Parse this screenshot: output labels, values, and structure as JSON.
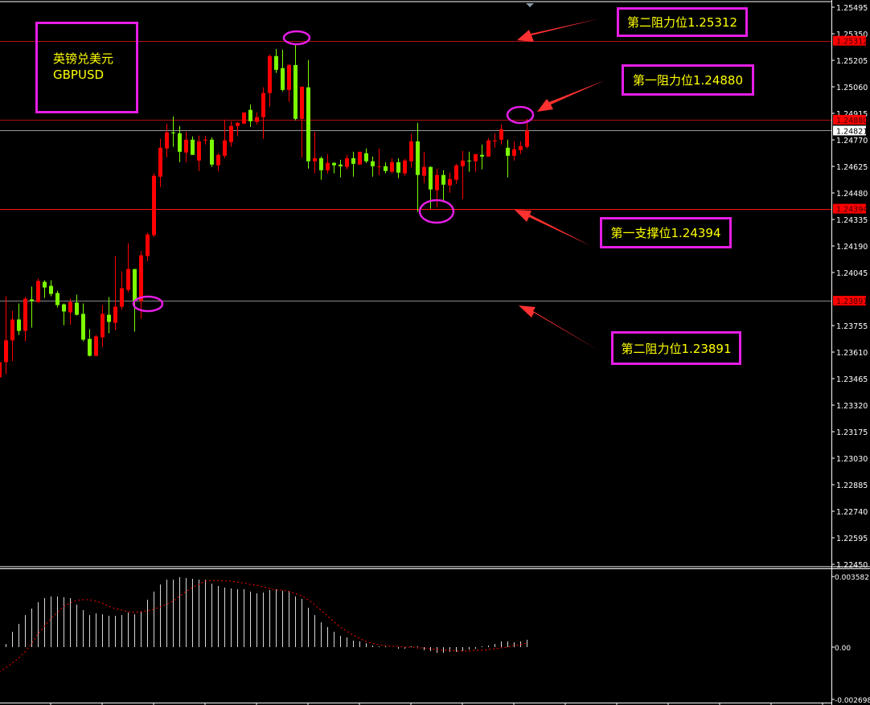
{
  "chart_data": {
    "type": "candlestick",
    "symbol_cn": "英镑兑美元",
    "symbol": "GBPUSD",
    "colors": {
      "up": "#ff0000",
      "down": "#7cfc00",
      "macd_hist": "#d8d8d8",
      "signal": "#ff0000",
      "annotation_box": "#e61ee6",
      "annotation_text": "#ffff00"
    },
    "price_axis": {
      "range": [
        1.2245,
        1.25495
      ],
      "ticks": [
        "1.25495",
        "1.25350",
        "1.25205",
        "1.25060",
        "1.24915",
        "1.24770",
        "1.24625",
        "1.24480",
        "1.24335",
        "1.24190",
        "1.24045",
        "1.23755",
        "1.23610",
        "1.23465",
        "1.23320",
        "1.23175",
        "1.23030",
        "1.22885",
        "1.22740",
        "1.22595",
        "1.22450"
      ]
    },
    "price_tags": [
      {
        "value": "1.25312",
        "style": "red"
      },
      {
        "value": "1.24880",
        "style": "red"
      },
      {
        "value": "1.24821",
        "style": "white"
      },
      {
        "value": "1.24394",
        "style": "red"
      },
      {
        "value": "1.23891",
        "style": "red"
      }
    ],
    "horizontal_lines": [
      {
        "price": 1.25312,
        "color": "#b01010"
      },
      {
        "price": 1.2488,
        "color": "#b01010"
      },
      {
        "price": 1.24821,
        "color": "#9a9a9a"
      },
      {
        "price": 1.24394,
        "color": "#ff1010"
      },
      {
        "price": 1.23891,
        "color": "#8a8a8a"
      }
    ],
    "ohlc": [
      [
        1.23472,
        1.23581,
        1.23011,
        1.23555
      ],
      [
        1.23555,
        1.23915,
        1.23489,
        1.23674
      ],
      [
        1.23674,
        1.23836,
        1.2356,
        1.23788
      ],
      [
        1.23788,
        1.23876,
        1.23704,
        1.23726
      ],
      [
        1.23726,
        1.23911,
        1.23669,
        1.23902
      ],
      [
        1.23898,
        1.23968,
        1.23744,
        1.23889
      ],
      [
        1.23884,
        1.24012,
        1.2388,
        1.23999
      ],
      [
        1.23994,
        1.24003,
        1.23906,
        1.23963
      ],
      [
        1.23972,
        1.24003,
        1.23915,
        1.23928
      ],
      [
        1.23933,
        1.23946,
        1.23854,
        1.23867
      ],
      [
        1.23871,
        1.23876,
        1.23757,
        1.23832
      ],
      [
        1.23827,
        1.23902,
        1.23761,
        1.23884
      ],
      [
        1.2388,
        1.23924,
        1.2381,
        1.23814
      ],
      [
        1.23819,
        1.23876,
        1.23669,
        1.23678
      ],
      [
        1.23682,
        1.23735,
        1.23586,
        1.2359
      ],
      [
        1.2359,
        1.23704,
        1.23586,
        1.23696
      ],
      [
        1.23691,
        1.23867,
        1.23639,
        1.23819
      ],
      [
        1.23814,
        1.23911,
        1.23713,
        1.23775
      ],
      [
        1.2377,
        1.24135,
        1.23731,
        1.23858
      ],
      [
        1.23858,
        1.24051,
        1.23841,
        1.23959
      ],
      [
        1.2395,
        1.24205,
        1.23937,
        1.24064
      ],
      [
        1.24064,
        1.24064,
        1.23722,
        1.23889
      ],
      [
        1.23889,
        1.24161,
        1.23792,
        1.24139
      ],
      [
        1.24135,
        1.24262,
        1.24108,
        1.24253
      ],
      [
        1.24249,
        1.24587,
        1.2424,
        1.24574
      ],
      [
        1.24569,
        1.24776,
        1.24512,
        1.24727
      ],
      [
        1.24723,
        1.24859,
        1.24675,
        1.24811
      ],
      [
        1.24811,
        1.24898,
        1.24732,
        1.24806
      ],
      [
        1.24806,
        1.24846,
        1.24648,
        1.24705
      ],
      [
        1.24701,
        1.24815,
        1.24648,
        1.24771
      ],
      [
        1.24771,
        1.24789,
        1.24688,
        1.24688
      ],
      [
        1.24657,
        1.24793,
        1.246,
        1.24762
      ],
      [
        1.24767,
        1.24793,
        1.24745,
        1.24771
      ],
      [
        1.24771,
        1.24784,
        1.24622,
        1.24635
      ],
      [
        1.24631,
        1.24697,
        1.246,
        1.24688
      ],
      [
        1.24683,
        1.24881,
        1.2467,
        1.24767
      ],
      [
        1.24758,
        1.24872,
        1.24732,
        1.24846
      ],
      [
        1.24846,
        1.24868,
        1.24793,
        1.24863
      ],
      [
        1.24859,
        1.2492,
        1.24855,
        1.2492
      ],
      [
        1.24934,
        1.24964,
        1.24841,
        1.24872
      ],
      [
        1.24868,
        1.2492,
        1.24855,
        1.24894
      ],
      [
        1.24894,
        1.25057,
        1.24776,
        1.25026
      ],
      [
        1.25026,
        1.25237,
        1.24951,
        1.25228
      ],
      [
        1.25228,
        1.25267,
        1.25136,
        1.25153
      ],
      [
        1.25162,
        1.25263,
        1.25035,
        1.25043
      ],
      [
        1.25043,
        1.25184,
        1.24978,
        1.25179
      ],
      [
        1.25179,
        1.25294,
        1.24877,
        1.24885
      ],
      [
        1.24885,
        1.25061,
        1.24675,
        1.25061
      ],
      [
        1.25057,
        1.25206,
        1.24613,
        1.24653
      ],
      [
        1.24653,
        1.24815,
        1.24587,
        1.2467
      ],
      [
        1.2467,
        1.24679,
        1.24552,
        1.24604
      ],
      [
        1.24604,
        1.24692,
        1.24587,
        1.24644
      ],
      [
        1.24644,
        1.24648,
        1.24587,
        1.24631
      ],
      [
        1.24635,
        1.24661,
        1.24565,
        1.24626
      ],
      [
        1.24622,
        1.24688,
        1.24609,
        1.2467
      ],
      [
        1.2467,
        1.24705,
        1.24569,
        1.24639
      ],
      [
        1.24635,
        1.24705,
        1.24635,
        1.24705
      ],
      [
        1.24697,
        1.24723,
        1.24644,
        1.24653
      ],
      [
        1.24653,
        1.24679,
        1.24569,
        1.24626
      ],
      [
        1.24622,
        1.24723,
        1.24578,
        1.24626
      ],
      [
        1.24626,
        1.24648,
        1.24587,
        1.246
      ],
      [
        1.24596,
        1.2467,
        1.24587,
        1.24648
      ],
      [
        1.24648,
        1.2467,
        1.24561,
        1.24591
      ],
      [
        1.24587,
        1.24666,
        1.24574,
        1.24657
      ],
      [
        1.24653,
        1.24802,
        1.24618,
        1.24762
      ],
      [
        1.24762,
        1.24863,
        1.24376,
        1.24578
      ],
      [
        1.24574,
        1.24705,
        1.24534,
        1.24622
      ],
      [
        1.24622,
        1.24626,
        1.24394,
        1.24499
      ],
      [
        1.24495,
        1.24613,
        1.24402,
        1.24578
      ],
      [
        1.24578,
        1.24604,
        1.24429,
        1.24525
      ],
      [
        1.24521,
        1.24591,
        1.24481,
        1.24556
      ],
      [
        1.24552,
        1.24639,
        1.2453,
        1.24631
      ],
      [
        1.24626,
        1.2471,
        1.24446,
        1.24657
      ],
      [
        1.24657,
        1.24705,
        1.24596,
        1.24653
      ],
      [
        1.24653,
        1.24692,
        1.24596,
        1.24692
      ],
      [
        1.24688,
        1.24745,
        1.24609,
        1.24679
      ],
      [
        1.24679,
        1.2478,
        1.24679,
        1.24767
      ],
      [
        1.24762,
        1.24806,
        1.24727,
        1.24767
      ],
      [
        1.24771,
        1.24855,
        1.24745,
        1.24828
      ],
      [
        1.24727,
        1.24771,
        1.24565,
        1.24683
      ],
      [
        1.24683,
        1.24762,
        1.24657,
        1.24719
      ],
      [
        1.24714,
        1.24762,
        1.24692,
        1.24736
      ],
      [
        1.24732,
        1.24885,
        1.24723,
        1.24821
      ]
    ],
    "macd": {
      "axis_labels": [
        "0.003582",
        "0.00",
        "-0.002698"
      ],
      "range": [
        -0.002698,
        0.003582
      ],
      "histogram": [
        0,
        0.00016,
        0.00078,
        0.00118,
        0.00163,
        0.00196,
        0.00228,
        0.00249,
        0.00257,
        0.00257,
        0.00253,
        0.00249,
        0.00216,
        0.00188,
        0.00163,
        0.00171,
        0.00167,
        0.00159,
        0.00159,
        0.00163,
        0.00175,
        0.00167,
        0.0018,
        0.00241,
        0.00282,
        0.00318,
        0.00343,
        0.00343,
        0.00355,
        0.00351,
        0.00347,
        0.00343,
        0.00343,
        0.00322,
        0.0031,
        0.00302,
        0.00298,
        0.00294,
        0.00294,
        0.00282,
        0.00273,
        0.00277,
        0.0029,
        0.00294,
        0.00286,
        0.00286,
        0.00257,
        0.00245,
        0.002,
        0.00163,
        0.00126,
        0.00102,
        0.00078,
        0.00057,
        0.00049,
        0.00033,
        0.00029,
        0.0002,
        8e-05,
        4e-05,
        4e-05,
        0,
        -8e-05,
        -8e-05,
        4e-05,
        4e-05,
        -0.00016,
        -0.0002,
        -0.00029,
        -0.00029,
        -0.00024,
        -0.00024,
        -0.0002,
        -0.00012,
        -8e-05,
        4e-05,
        8e-05,
        0.00016,
        0.00029,
        0.00029,
        0.00024,
        0.00029,
        0.00037
      ],
      "signal": [
        -0.00126,
        -0.00106,
        -0.00082,
        -0.00057,
        -0.00024,
        0.00016,
        0.00065,
        0.00106,
        0.00143,
        0.00175,
        0.00204,
        0.00224,
        0.00237,
        0.00241,
        0.00241,
        0.00233,
        0.00224,
        0.00208,
        0.00196,
        0.00188,
        0.0018,
        0.00175,
        0.0018,
        0.00184,
        0.00192,
        0.00204,
        0.00216,
        0.00233,
        0.00257,
        0.00282,
        0.00302,
        0.00318,
        0.00335,
        0.00339,
        0.00339,
        0.00335,
        0.00335,
        0.0033,
        0.00326,
        0.00318,
        0.00314,
        0.00306,
        0.00298,
        0.0029,
        0.0029,
        0.00282,
        0.00273,
        0.00261,
        0.00241,
        0.00216,
        0.00188,
        0.00159,
        0.00131,
        0.00102,
        0.00082,
        0.00061,
        0.00045,
        0.00029,
        0.0002,
        0.00012,
        8e-05,
        4e-05,
        4e-05,
        0,
        0,
        -4e-05,
        -4e-05,
        -8e-05,
        -0.00012,
        -0.00016,
        -0.00016,
        -0.0002,
        -0.0002,
        -0.0002,
        -0.00016,
        -0.00016,
        -0.00012,
        -8e-05,
        -4e-05,
        0,
        8e-05,
        0.00012,
        0.0002
      ]
    },
    "annotations": [
      {
        "text": "第二阻力位1.25312"
      },
      {
        "text": "第一阻力位1.24880"
      },
      {
        "text": "第一支撑位1.24394"
      },
      {
        "text": "第二阻力位1.23891"
      }
    ]
  }
}
